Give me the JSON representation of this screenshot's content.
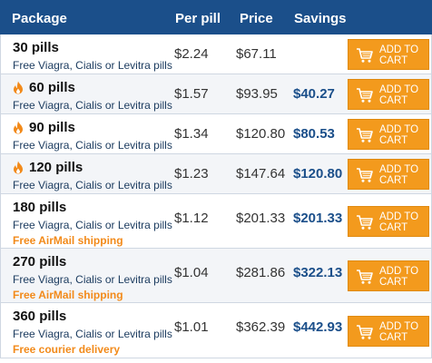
{
  "header": {
    "package": "Package",
    "per_pill": "Per pill",
    "price": "Price",
    "savings": "Savings"
  },
  "button_label_line1": "ADD TO",
  "button_label_line2": "CART",
  "brand_colors": {
    "header": "#1b4f8a",
    "button": "#f39a1d",
    "flame": "#f28a1a"
  },
  "rows": [
    {
      "name": "30 pills",
      "hot": false,
      "subtitle": "Free Viagra, Cialis or Levitra pills",
      "extra": "",
      "per_pill": "$2.24",
      "price": "$67.11",
      "savings": ""
    },
    {
      "name": "60 pills",
      "hot": true,
      "subtitle": "Free Viagra, Cialis or Levitra pills",
      "extra": "",
      "per_pill": "$1.57",
      "price": "$93.95",
      "savings": "$40.27"
    },
    {
      "name": "90 pills",
      "hot": true,
      "subtitle": "Free Viagra, Cialis or Levitra pills",
      "extra": "",
      "per_pill": "$1.34",
      "price": "$120.80",
      "savings": "$80.53"
    },
    {
      "name": "120 pills",
      "hot": true,
      "subtitle": "Free Viagra, Cialis or Levitra pills",
      "extra": "",
      "per_pill": "$1.23",
      "price": "$147.64",
      "savings": "$120.80"
    },
    {
      "name": "180 pills",
      "hot": false,
      "subtitle": "Free Viagra, Cialis or Levitra pills",
      "extra": "Free AirMail shipping",
      "per_pill": "$1.12",
      "price": "$201.33",
      "savings": "$201.33"
    },
    {
      "name": "270 pills",
      "hot": false,
      "subtitle": "Free Viagra, Cialis or Levitra pills",
      "extra": "Free AirMail shipping",
      "per_pill": "$1.04",
      "price": "$281.86",
      "savings": "$322.13"
    },
    {
      "name": "360 pills",
      "hot": false,
      "subtitle": "Free Viagra, Cialis or Levitra pills",
      "extra": "Free courier delivery",
      "per_pill": "$1.01",
      "price": "$362.39",
      "savings": "$442.93"
    }
  ]
}
